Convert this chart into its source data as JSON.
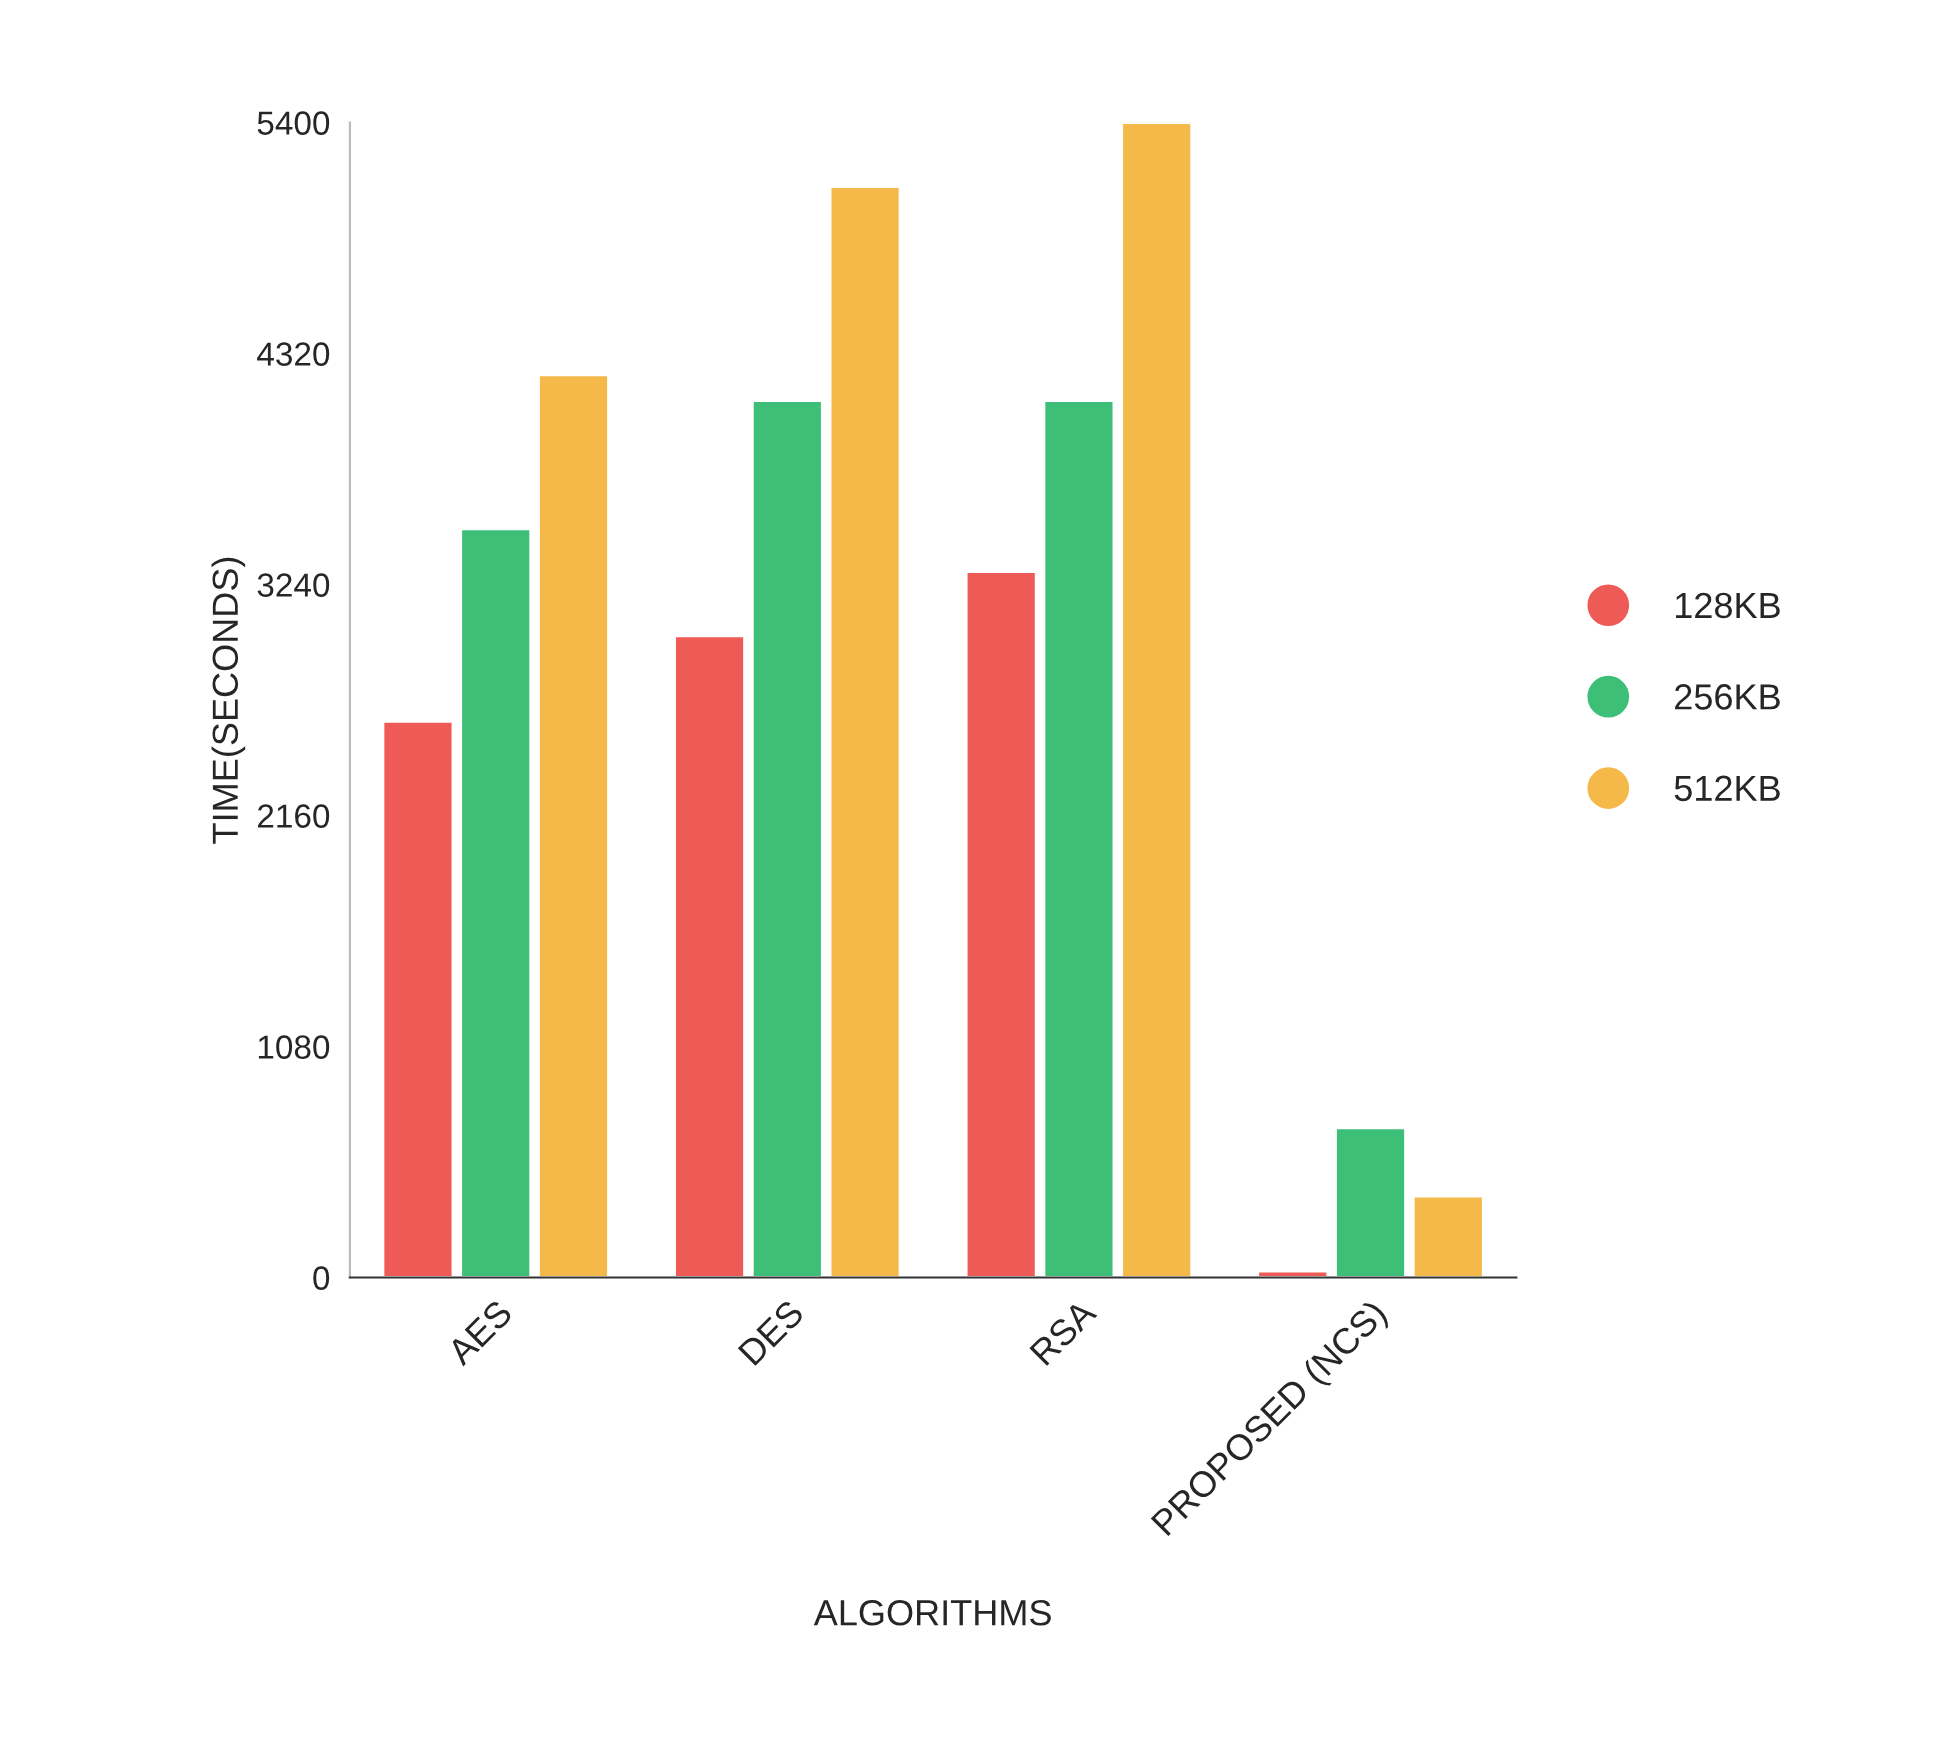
{
  "chart_data": {
    "type": "bar",
    "xlabel": "ALGORITHMS",
    "ylabel": "TIME(SECONDS)",
    "categories": [
      "AES",
      "DES",
      "RSA",
      "PROPOSED (NCS)"
    ],
    "series": [
      {
        "name": "128KB",
        "color": "#ee5a55",
        "values": [
          2600,
          3000,
          3300,
          30
        ]
      },
      {
        "name": "256KB",
        "color": "#3dbf78",
        "values": [
          3500,
          4100,
          4100,
          700
        ]
      },
      {
        "name": "512KB",
        "color": "#f5b94a",
        "values": [
          4220,
          5100,
          5400,
          380
        ]
      }
    ],
    "ylim": [
      0,
      5400
    ],
    "yticks": [
      0,
      1080,
      2160,
      3240,
      4320,
      5400
    ],
    "grid": false,
    "legend": "right"
  }
}
